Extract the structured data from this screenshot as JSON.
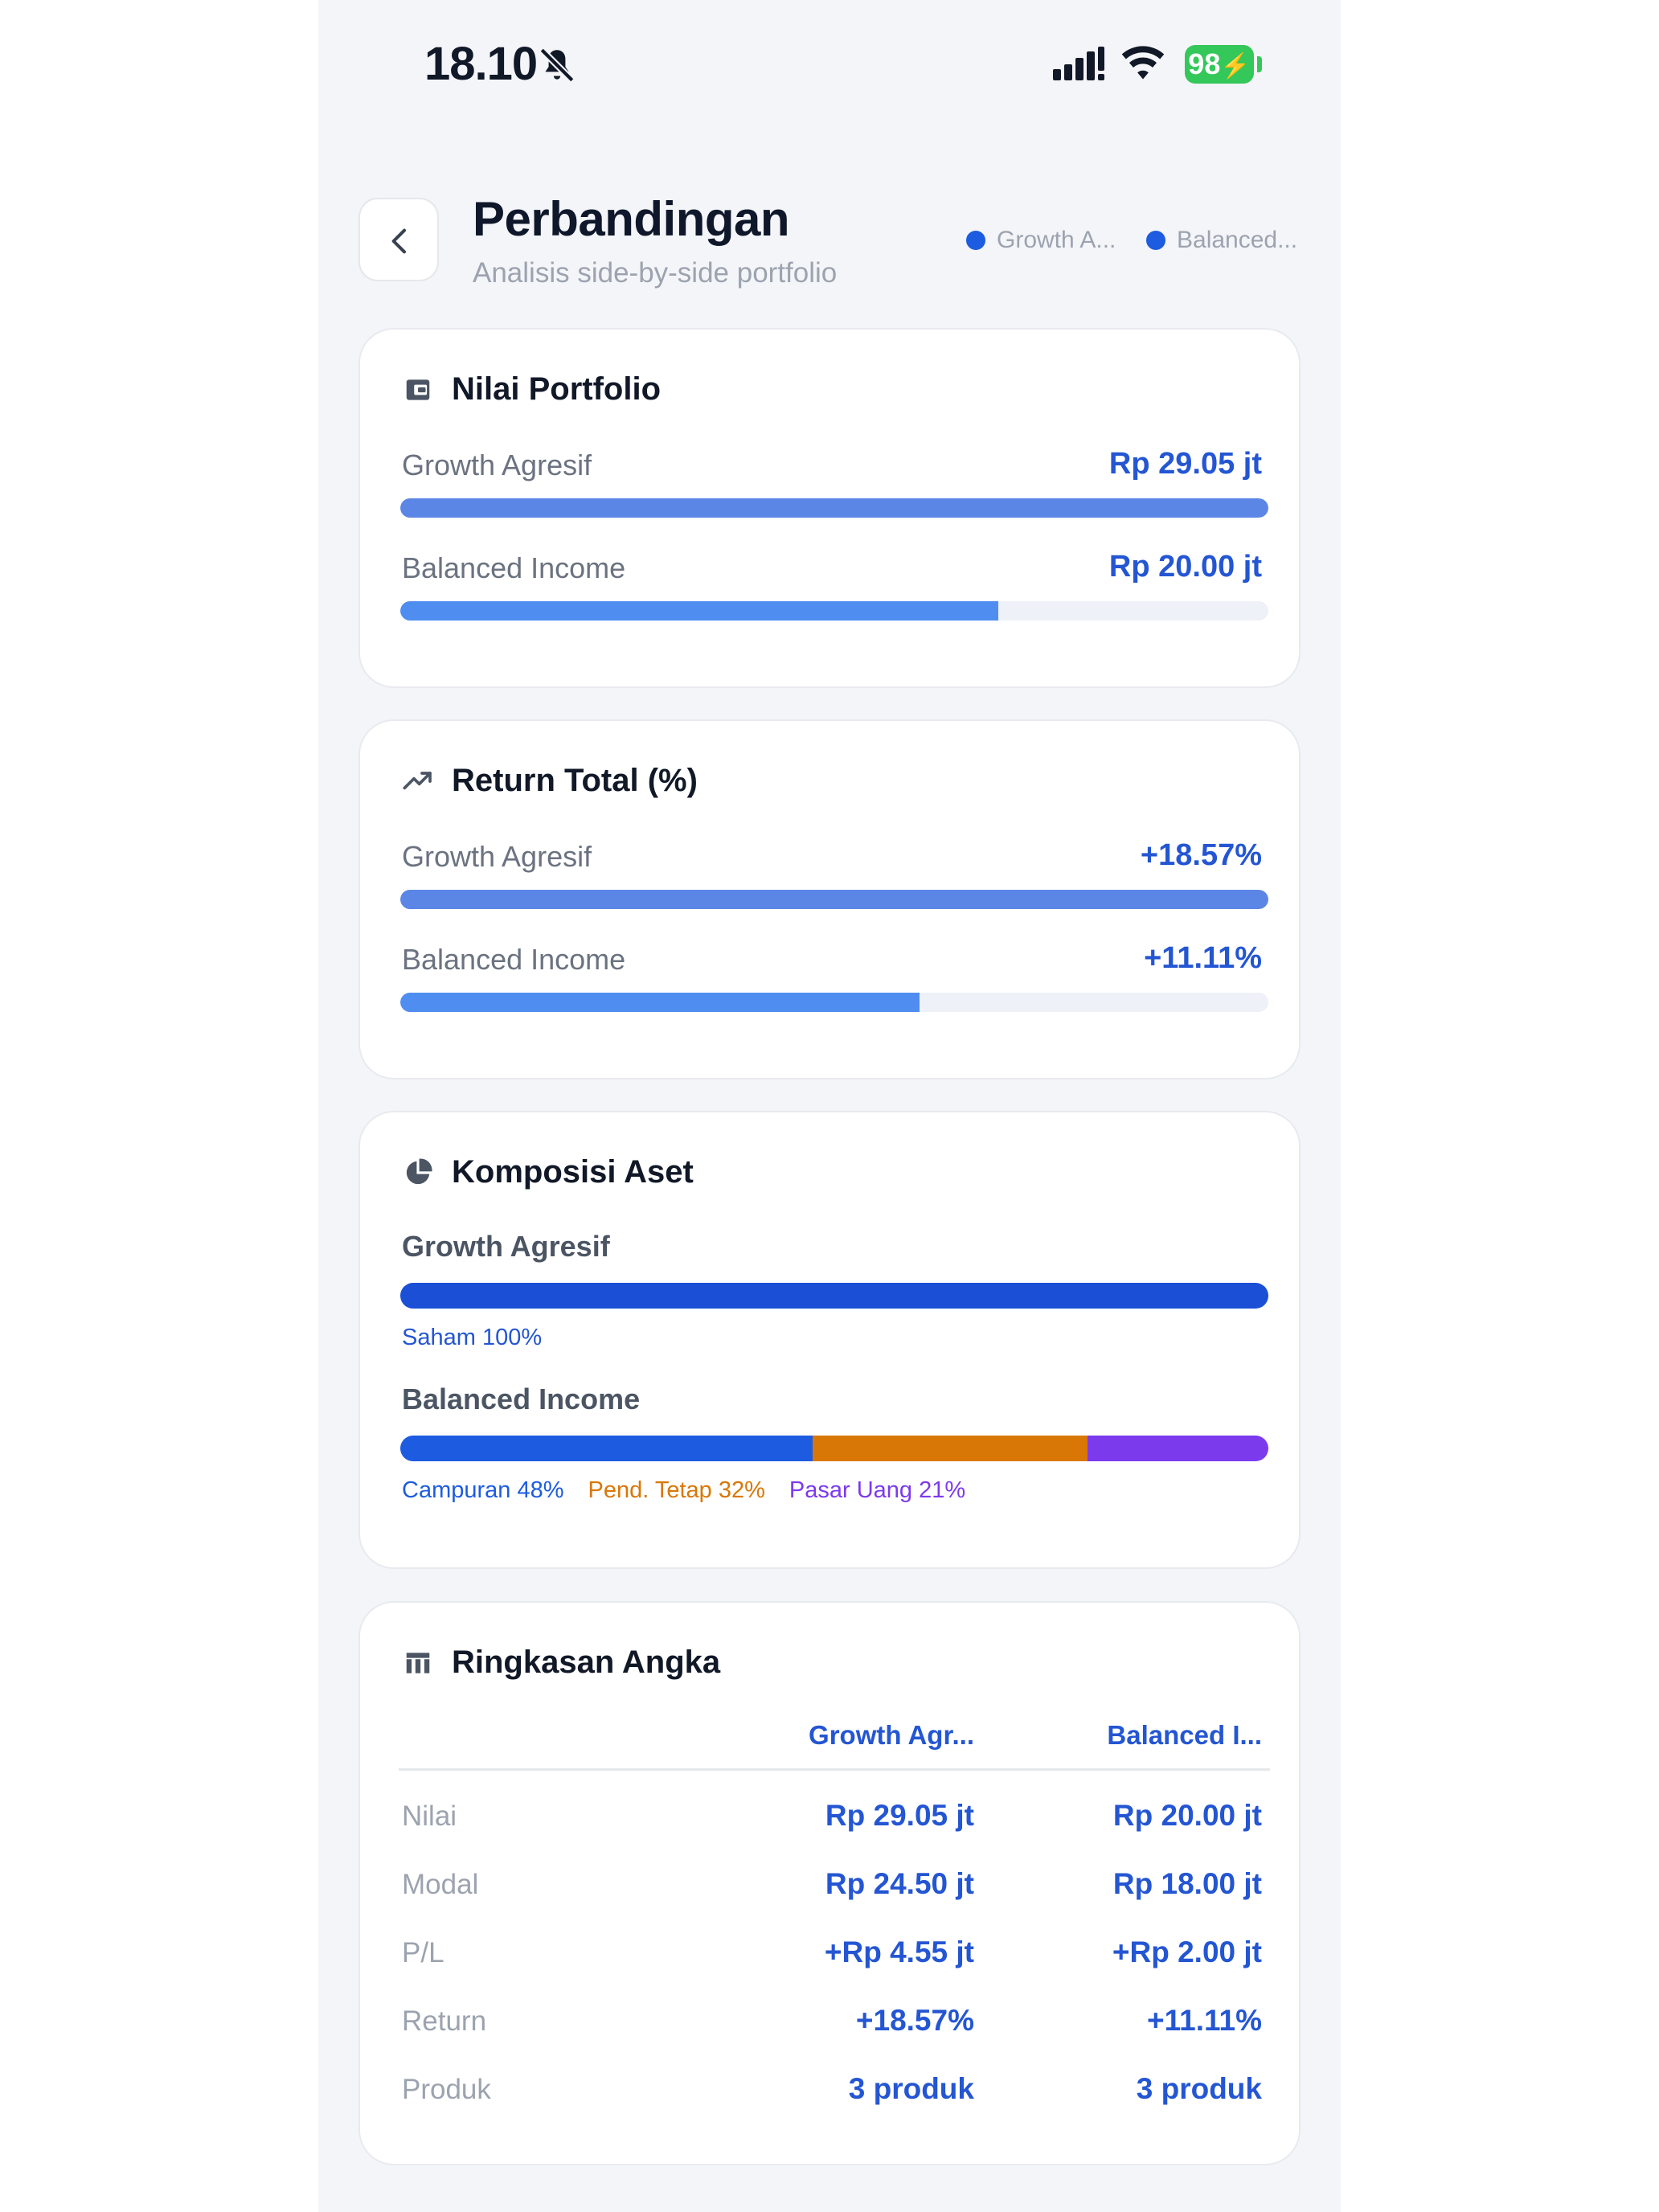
{
  "status_bar": {
    "time": "18.10",
    "battery": "98"
  },
  "header": {
    "title": "Perbandingan",
    "subtitle": "Analisis side-by-side portfolio",
    "legend": [
      {
        "label": "Growth A...",
        "color": "#1d5ce0"
      },
      {
        "label": "Balanced...",
        "color": "#1d5ce0"
      }
    ]
  },
  "nilai": {
    "title": "Nilai Portfolio",
    "icon": "wallet-icon",
    "rows": [
      {
        "label": "Growth Agresif",
        "value": "Rp 29.05 jt",
        "fraction": 1.0
      },
      {
        "label": "Balanced Income",
        "value": "Rp 20.00 jt",
        "fraction": 0.689
      }
    ]
  },
  "return_total": {
    "title": "Return Total (%)",
    "icon": "trending-up-icon",
    "rows": [
      {
        "label": "Growth Agresif",
        "value": "+18.57%",
        "fraction": 1.0
      },
      {
        "label": "Balanced Income",
        "value": "+11.11%",
        "fraction": 0.598
      }
    ]
  },
  "komposisi": {
    "title": "Komposisi Aset",
    "icon": "pie-chart-icon",
    "portfolios": [
      {
        "name": "Growth Agresif",
        "segments": [
          {
            "label": "Saham 100%",
            "percent": 100,
            "color": "#1a4fd6"
          }
        ]
      },
      {
        "name": "Balanced Income",
        "segments": [
          {
            "label": "Campuran 48%",
            "percent": 48,
            "color": "#1d5ce0"
          },
          {
            "label": "Pend. Tetap 32%",
            "percent": 32,
            "color": "#d97706"
          },
          {
            "label": "Pasar Uang 21%",
            "percent": 21,
            "color": "#7c3aed"
          }
        ]
      }
    ]
  },
  "ringkasan": {
    "title": "Ringkasan Angka",
    "icon": "table-icon",
    "columns": [
      "Growth Agr...",
      "Balanced I..."
    ],
    "rows": [
      {
        "label": "Nilai",
        "a": "Rp 29.05 jt",
        "b": "Rp 20.00 jt"
      },
      {
        "label": "Modal",
        "a": "Rp 24.50 jt",
        "b": "Rp 18.00 jt"
      },
      {
        "label": "P/L",
        "a": "+Rp 4.55 jt",
        "b": "+Rp 2.00 jt"
      },
      {
        "label": "Return",
        "a": "+18.57%",
        "b": "+11.11%"
      },
      {
        "label": "Produk",
        "a": "3 produk",
        "b": "3 produk"
      }
    ]
  },
  "colors": {
    "accent": "#2456d3",
    "bar_primary": "#5b86e5",
    "bar_secondary": "#4f8ef0",
    "track": "#eef1f7"
  }
}
